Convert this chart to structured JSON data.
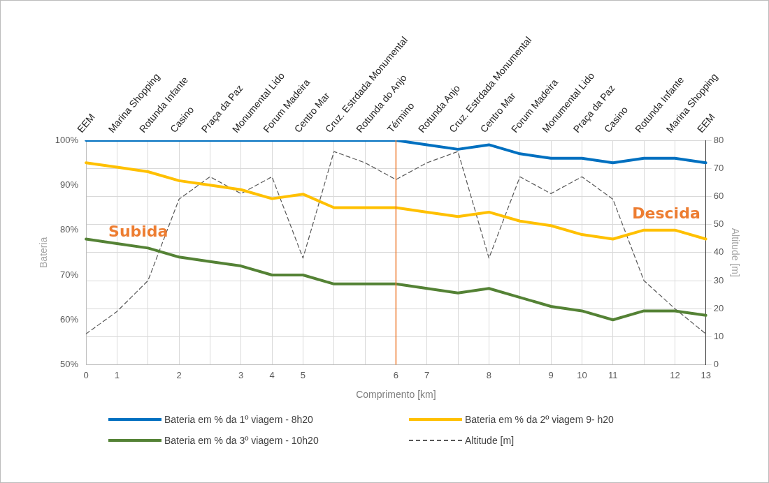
{
  "chart_data": {
    "type": "line",
    "xlabel": "Comprimento [km]",
    "ylabel": "Bateria",
    "y2label": "Altitude [m]",
    "categories": [
      "0",
      "1",
      null,
      "2",
      null,
      "3",
      "4",
      "5",
      null,
      null,
      "6",
      "7",
      null,
      "8",
      null,
      "9",
      "10",
      "11",
      null,
      "12",
      "13"
    ],
    "ylim": [
      50,
      100
    ],
    "yticks": [
      {
        "value": 50,
        "label": "50%"
      },
      {
        "value": 60,
        "label": "60%"
      },
      {
        "value": 70,
        "label": "70%"
      },
      {
        "value": 80,
        "label": "80%"
      },
      {
        "value": 90,
        "label": "90%"
      },
      {
        "value": 100,
        "label": "100%"
      }
    ],
    "y2lim": [
      0,
      80
    ],
    "y2ticks": [
      0,
      10,
      20,
      30,
      40,
      50,
      60,
      70,
      80
    ],
    "series": [
      {
        "name": "Bateria em % da 1º viagem - 8h20",
        "color": "#0070c0",
        "values": [
          100,
          100,
          100,
          100,
          100,
          100,
          100,
          100,
          100,
          100,
          100,
          99,
          98,
          99,
          97,
          96,
          96,
          95,
          96,
          96,
          95
        ]
      },
      {
        "name": "Bateria em % da 2º viagem 9- h20",
        "color": "#ffc000",
        "values": [
          95,
          94,
          93,
          91,
          90,
          89,
          87,
          88,
          85,
          85,
          85,
          84,
          83,
          84,
          82,
          81,
          79,
          78,
          80,
          80,
          78
        ]
      },
      {
        "name": "Bateria em % da 3º viagem - 10h20",
        "color": "#548235",
        "values": [
          78,
          77,
          76,
          74,
          73,
          72,
          70,
          70,
          68,
          68,
          68,
          67,
          66,
          67,
          65,
          63,
          62,
          60,
          62,
          62,
          61
        ]
      },
      {
        "name": "Altitude [m]",
        "color": "#595959",
        "axis": "y2",
        "line_style": "dashed",
        "values": [
          11,
          19,
          30,
          59,
          67,
          61,
          67,
          38,
          76,
          72,
          66,
          72,
          76,
          38,
          67,
          61,
          67,
          59,
          30,
          20,
          11
        ]
      }
    ],
    "ref_lines": [
      {
        "axis": "x",
        "value": "6",
        "color": "#ed7d31"
      }
    ],
    "annotations": [
      "Subida",
      "Descida",
      "EEM",
      "Marina Shopping",
      "Rotunda Infante",
      "Casino",
      "Praça da Paz",
      "Monumental Lido",
      "Forum Madeira",
      "Centro Mar",
      "Cruz. Estrdada Monumental",
      "Rotunda do Anjo",
      "Término",
      "Rotunda Anjo",
      "Cruz. Estrdada Monumental",
      "Centro Mar",
      "Forum Madeira",
      "Monumental Lido",
      "Praça da Paz",
      "Casino",
      "Rotunda Infante",
      "Marina Shopping",
      "EEM"
    ],
    "grid": true,
    "legend": "bottom",
    "marker": "none",
    "line_style": "solid"
  }
}
